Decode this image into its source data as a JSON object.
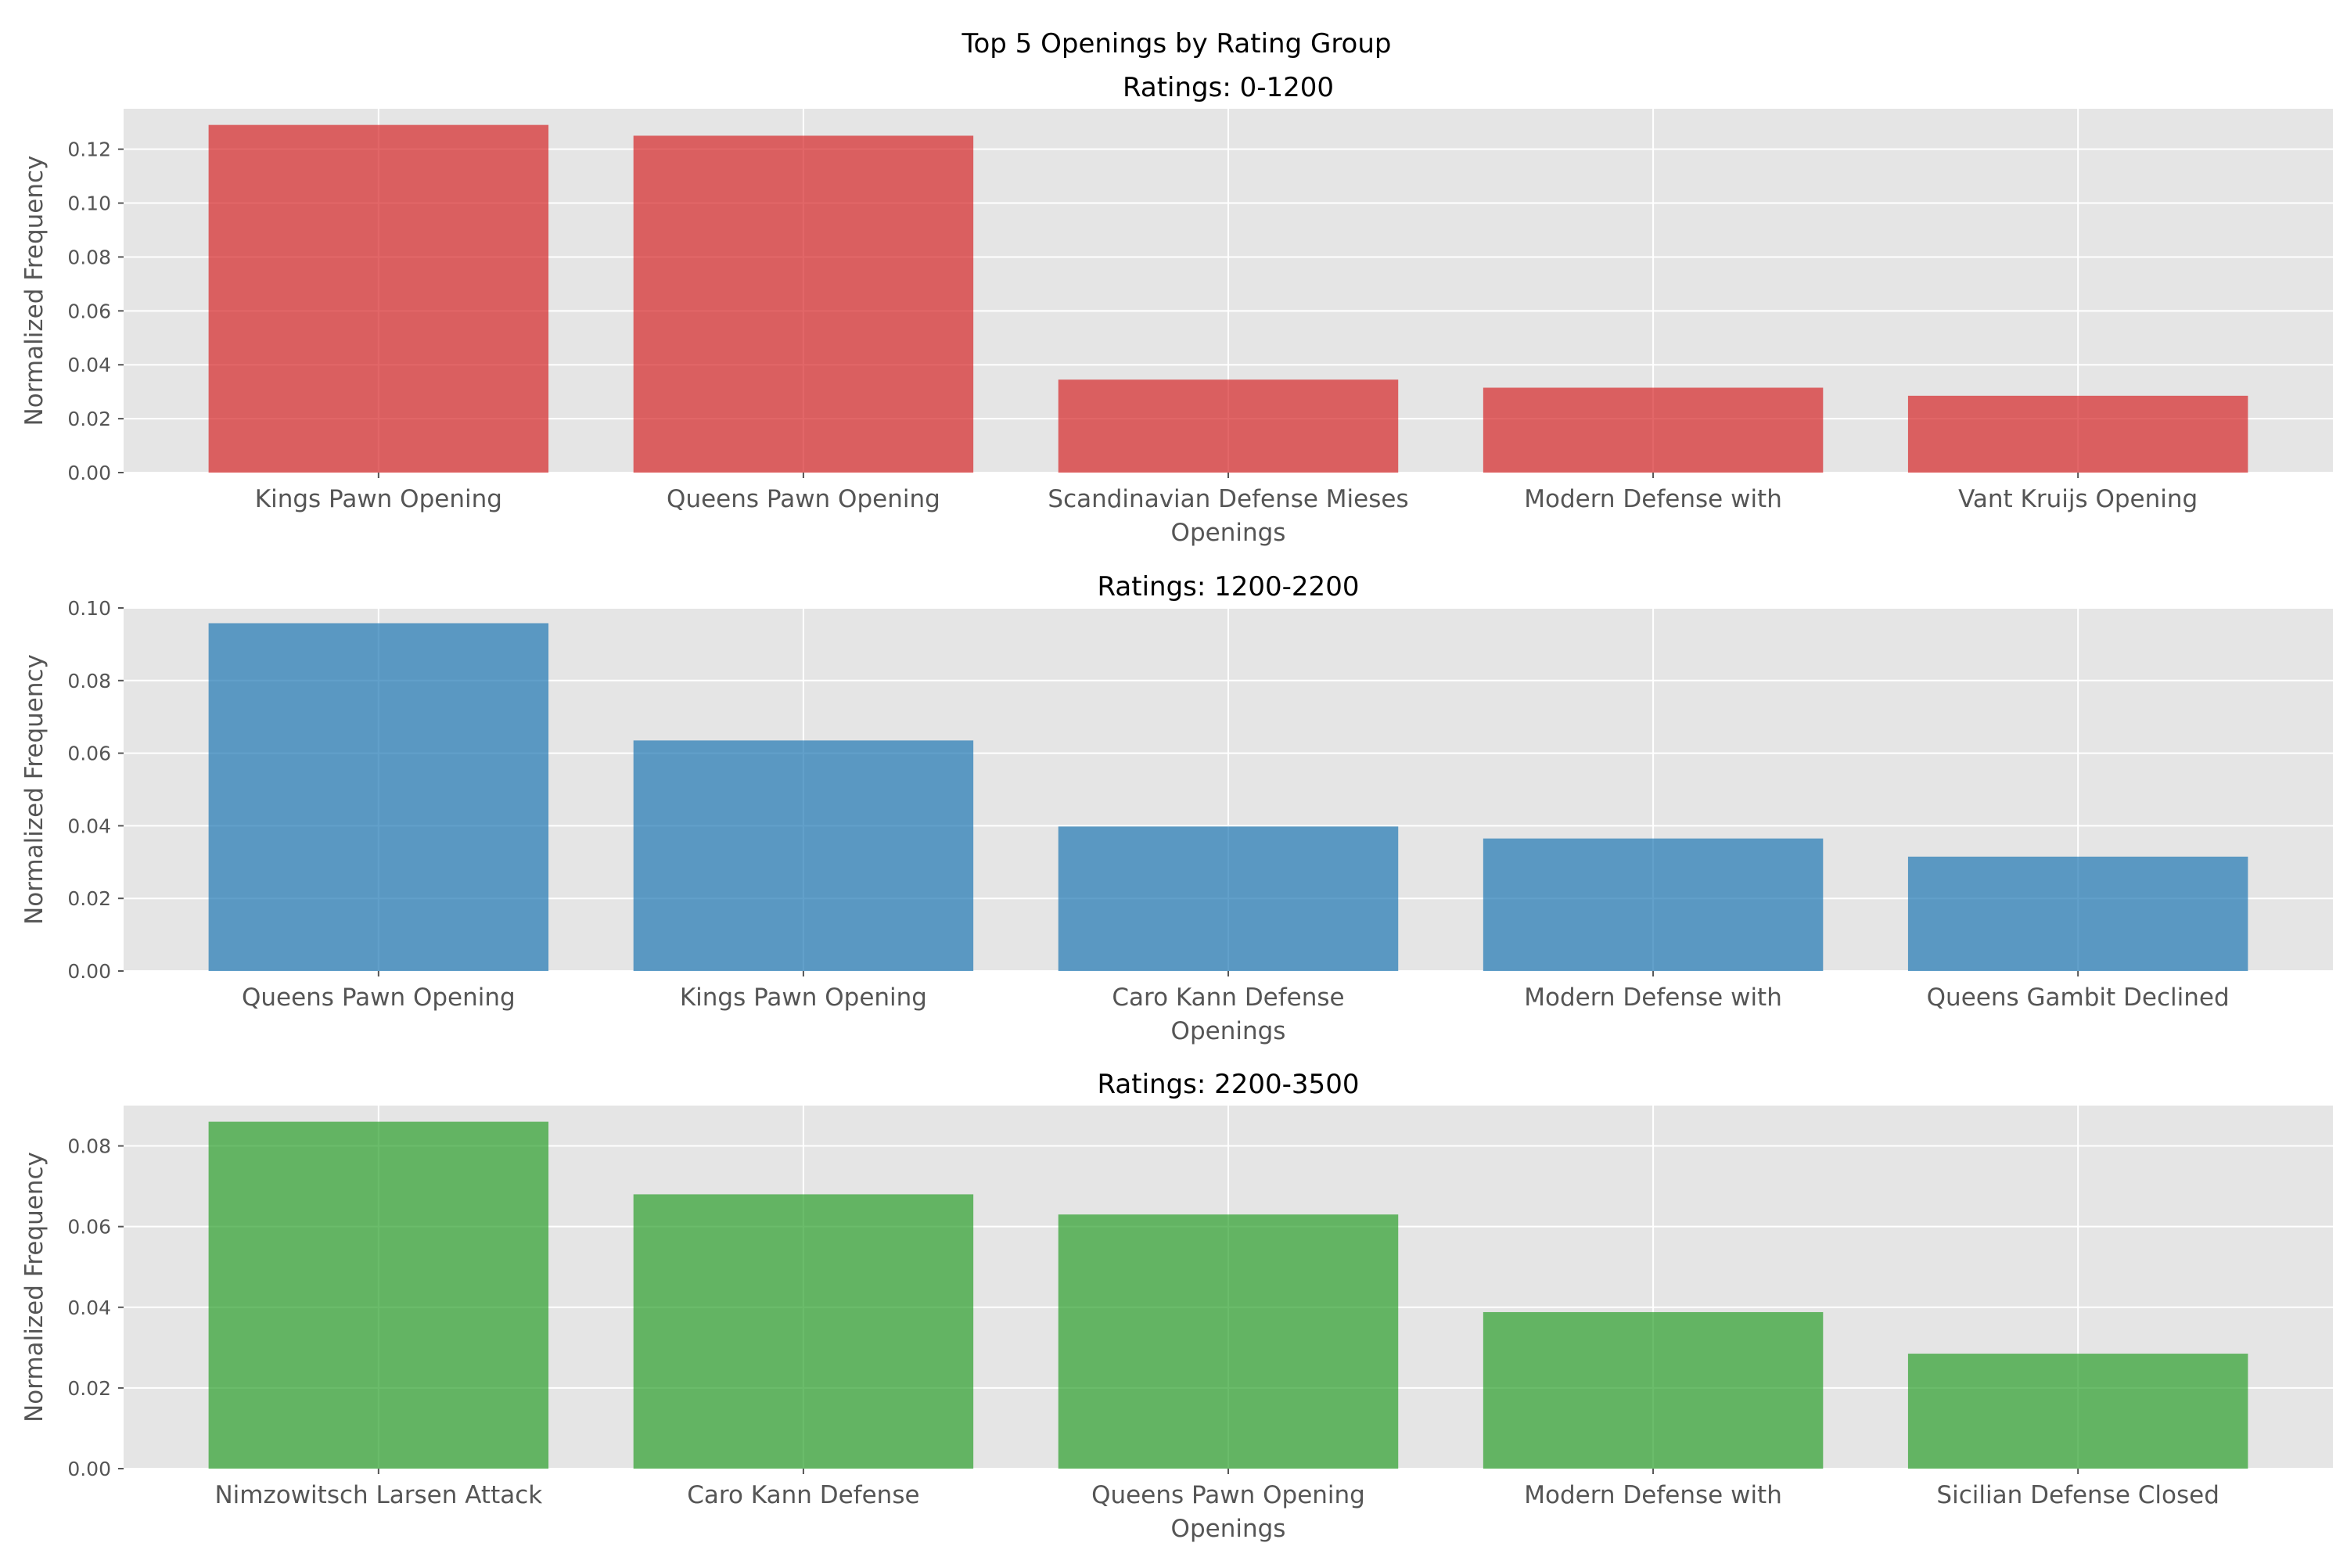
{
  "figure": {
    "suptitle": "Top 5 Openings by Rating Group"
  },
  "chart_data": [
    {
      "type": "bar",
      "title": "Ratings: 0-1200",
      "xlabel": "Openings",
      "ylabel": "Normalized Frequency",
      "categories": [
        "Kings Pawn Opening",
        "Queens Pawn Opening",
        "Scandinavian Defense Mieses",
        "Modern Defense with",
        "Vant Kruijs Opening"
      ],
      "values": [
        0.129,
        0.125,
        0.0345,
        0.0315,
        0.0285
      ],
      "ylim": [
        0,
        0.135
      ],
      "yticks": [
        0.0,
        0.02,
        0.04,
        0.06,
        0.08,
        0.1,
        0.12
      ],
      "ytick_labels": [
        "0.00",
        "0.02",
        "0.04",
        "0.06",
        "0.08",
        "0.10",
        "0.12"
      ],
      "color": "#d62728",
      "grid": true
    },
    {
      "type": "bar",
      "title": "Ratings: 1200-2200",
      "xlabel": "Openings",
      "ylabel": "Normalized Frequency",
      "categories": [
        "Queens Pawn Opening",
        "Kings Pawn Opening",
        "Caro Kann Defense",
        "Modern Defense with",
        "Queens Gambit Declined"
      ],
      "values": [
        0.0958,
        0.0635,
        0.0398,
        0.0365,
        0.0315
      ],
      "ylim": [
        0,
        0.1
      ],
      "yticks": [
        0.0,
        0.02,
        0.04,
        0.06,
        0.08,
        0.1
      ],
      "ytick_labels": [
        "0.00",
        "0.02",
        "0.04",
        "0.06",
        "0.08",
        "0.10"
      ],
      "color": "#1f77b4",
      "grid": true
    },
    {
      "type": "bar",
      "title": "Ratings: 2200-3500",
      "xlabel": "Openings",
      "ylabel": "Normalized Frequency",
      "categories": [
        "Nimzowitsch Larsen Attack",
        "Caro Kann Defense",
        "Queens Pawn Opening",
        "Modern Defense with",
        "Sicilian Defense Closed"
      ],
      "values": [
        0.086,
        0.068,
        0.063,
        0.0388,
        0.0285
      ],
      "ylim": [
        0,
        0.09
      ],
      "yticks": [
        0.0,
        0.02,
        0.04,
        0.06,
        0.08
      ],
      "ytick_labels": [
        "0.00",
        "0.02",
        "0.04",
        "0.06",
        "0.08"
      ],
      "color": "#2ca02c",
      "grid": true
    }
  ]
}
